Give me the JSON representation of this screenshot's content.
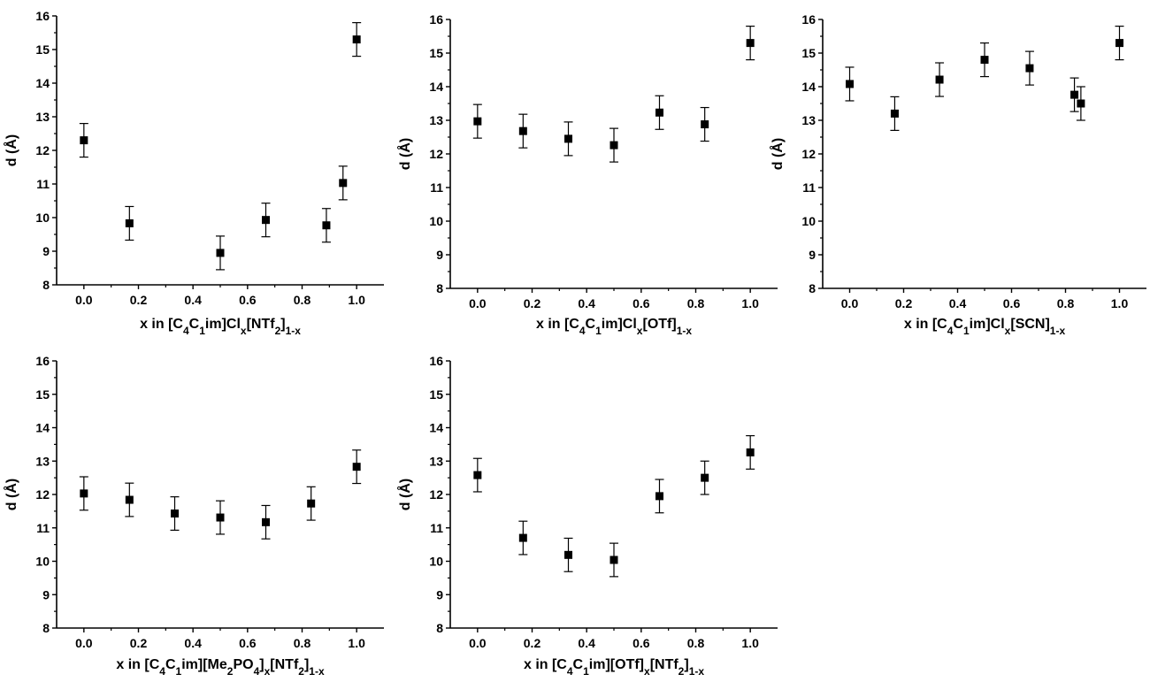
{
  "chart_data": [
    {
      "type": "scatter",
      "xlabel": {
        "pre": "x in [C",
        "s1": "4",
        "m1": "C",
        "s2": "1",
        "m2": "im]Cl",
        "s3": "x",
        "m3": "[NTf",
        "s4": "2",
        "m4": "]",
        "s5": "1-x",
        "post": ""
      },
      "ylabel": "d (Å)",
      "xlim": [
        -0.1,
        1.1
      ],
      "ylim": [
        8,
        16
      ],
      "xticks": [
        "0.0",
        "0.2",
        "0.4",
        "0.6",
        "0.8",
        "1.0"
      ],
      "yticks": [
        "8",
        "9",
        "10",
        "11",
        "12",
        "13",
        "14",
        "15",
        "16"
      ],
      "series": [
        {
          "x": [
            0.0,
            0.167,
            0.5,
            0.667,
            0.889,
            0.95,
            1.0
          ],
          "y": [
            12.3,
            9.83,
            8.95,
            9.93,
            9.77,
            11.03,
            15.3
          ],
          "err": [
            0.5,
            0.5,
            0.5,
            0.5,
            0.5,
            0.5,
            0.5
          ]
        }
      ]
    },
    {
      "type": "scatter",
      "xlabel": {
        "pre": "x in [C",
        "s1": "4",
        "m1": "C",
        "s2": "1",
        "m2": "im]Cl",
        "s3": "x",
        "m3": "[OTf]",
        "s4": "",
        "m4": "",
        "s5": "1-x",
        "post": ""
      },
      "ylabel": "d (Å)",
      "xlim": [
        -0.1,
        1.1
      ],
      "ylim": [
        8,
        16
      ],
      "xticks": [
        "0.0",
        "0.2",
        "0.4",
        "0.6",
        "0.8",
        "1.0"
      ],
      "yticks": [
        "8",
        "9",
        "10",
        "11",
        "12",
        "13",
        "14",
        "15",
        "16"
      ],
      "series": [
        {
          "x": [
            0.0,
            0.167,
            0.333,
            0.5,
            0.667,
            0.833,
            1.0
          ],
          "y": [
            12.97,
            12.68,
            12.45,
            12.26,
            13.23,
            12.88,
            15.3
          ],
          "err": [
            0.5,
            0.5,
            0.5,
            0.5,
            0.5,
            0.5,
            0.5
          ]
        }
      ]
    },
    {
      "type": "scatter",
      "xlabel": {
        "pre": "x in [C",
        "s1": "4",
        "m1": "C",
        "s2": "1",
        "m2": "im]Cl",
        "s3": "x",
        "m3": "[SCN]",
        "s4": "",
        "m4": "",
        "s5": "1-x",
        "post": ""
      },
      "ylabel": "d (Å)",
      "xlim": [
        -0.1,
        1.1
      ],
      "ylim": [
        8,
        16
      ],
      "xticks": [
        "0.0",
        "0.2",
        "0.4",
        "0.6",
        "0.8",
        "1.0"
      ],
      "yticks": [
        "8",
        "9",
        "10",
        "11",
        "12",
        "13",
        "14",
        "15",
        "16"
      ],
      "series": [
        {
          "x": [
            0.0,
            0.167,
            0.333,
            0.5,
            0.667,
            0.833,
            0.857,
            1.0
          ],
          "y": [
            14.08,
            13.2,
            14.21,
            14.8,
            14.55,
            13.76,
            13.5,
            15.3
          ],
          "err": [
            0.5,
            0.5,
            0.5,
            0.5,
            0.5,
            0.5,
            0.5,
            0.5
          ]
        }
      ]
    },
    {
      "type": "scatter",
      "xlabel": {
        "pre": "x in [C",
        "s1": "4",
        "m1": "C",
        "s2": "1",
        "m2": "im][Me",
        "s3": "2",
        "m3": "PO",
        "s4": "4",
        "m4": "]",
        "s5": "x",
        "post": "[NTf",
        "s6": "2",
        "m5": "]",
        "s7": "1-x"
      },
      "ylabel": "d (Å)",
      "xlim": [
        -0.1,
        1.1
      ],
      "ylim": [
        8,
        16
      ],
      "xticks": [
        "0.0",
        "0.2",
        "0.4",
        "0.6",
        "0.8",
        "1.0"
      ],
      "yticks": [
        "8",
        "9",
        "10",
        "11",
        "12",
        "13",
        "14",
        "15",
        "16"
      ],
      "series": [
        {
          "x": [
            0.0,
            0.167,
            0.333,
            0.5,
            0.667,
            0.833,
            1.0
          ],
          "y": [
            12.03,
            11.84,
            11.43,
            11.31,
            11.17,
            11.73,
            12.83
          ],
          "err": [
            0.5,
            0.5,
            0.5,
            0.5,
            0.5,
            0.5,
            0.5
          ]
        }
      ]
    },
    {
      "type": "scatter",
      "xlabel": {
        "pre": "x in [C",
        "s1": "4",
        "m1": "C",
        "s2": "1",
        "m2": "im][OTf]",
        "s3": "x",
        "m3": "[NTf",
        "s4": "2",
        "m4": "]",
        "s5": "1-x",
        "post": ""
      },
      "ylabel": "d (Å)",
      "xlim": [
        -0.1,
        1.1
      ],
      "ylim": [
        8,
        16
      ],
      "xticks": [
        "0.0",
        "0.2",
        "0.4",
        "0.6",
        "0.8",
        "1.0"
      ],
      "yticks": [
        "8",
        "9",
        "10",
        "11",
        "12",
        "13",
        "14",
        "15",
        "16"
      ],
      "series": [
        {
          "x": [
            0.0,
            0.167,
            0.333,
            0.5,
            0.667,
            0.833,
            1.0
          ],
          "y": [
            12.58,
            10.7,
            10.19,
            10.04,
            11.95,
            12.5,
            13.26
          ],
          "err": [
            0.5,
            0.5,
            0.5,
            0.5,
            0.5,
            0.5,
            0.5
          ]
        }
      ]
    }
  ]
}
